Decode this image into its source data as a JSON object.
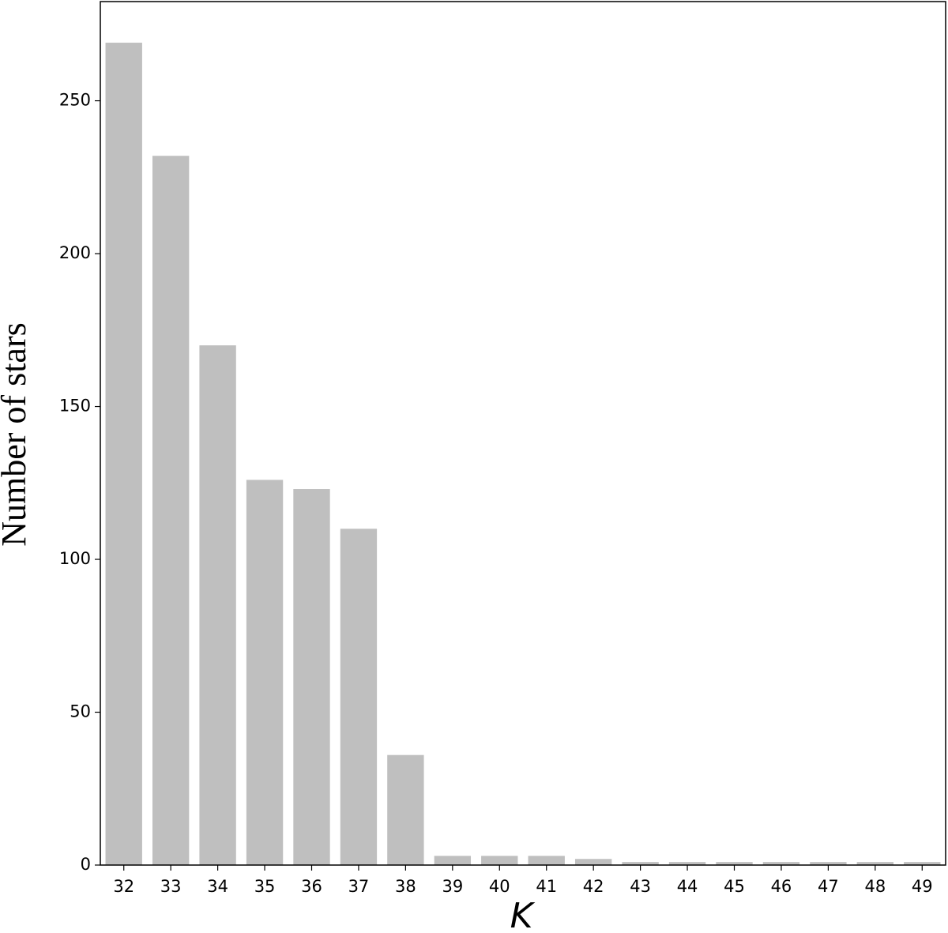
{
  "chart_data": {
    "type": "bar",
    "x_label": "K",
    "y_label": "Number of stars",
    "categories": [
      "32",
      "33",
      "34",
      "35",
      "36",
      "37",
      "38",
      "39",
      "40",
      "41",
      "42",
      "43",
      "44",
      "45",
      "46",
      "47",
      "48",
      "49"
    ],
    "values": [
      269,
      232,
      170,
      126,
      123,
      110,
      36,
      3,
      3,
      3,
      2,
      1,
      1,
      1,
      1,
      1,
      1,
      1
    ],
    "color": "#bfbfbf",
    "ylim": [
      0,
      282.45
    ],
    "yticks": [
      0,
      50,
      100,
      150,
      200,
      250
    ],
    "grid": false
  }
}
